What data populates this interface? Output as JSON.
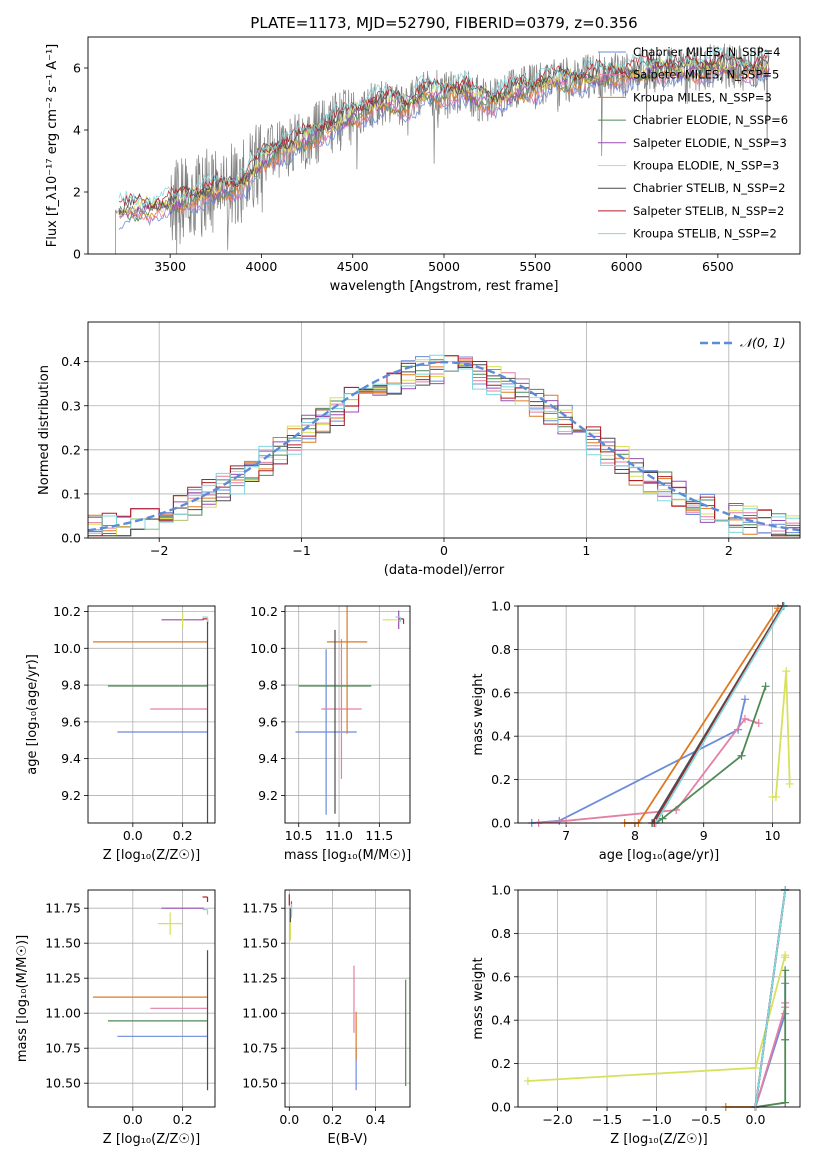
{
  "colors": {
    "chabrier_miles": "#6a8bdc",
    "salpeter_miles": "#e47fa6",
    "kroupa_miles": "#dd7a23",
    "chabrier_elodie": "#4f8a56",
    "salpeter_elodie": "#9a4db0",
    "kroupa_elodie": "#d8e05e",
    "chabrier_stelib": "#4d4d4d",
    "salpeter_stelib": "#b01f24",
    "kroupa_stelib": "#7fd8de",
    "data_grey": "#808080",
    "gauss": "#5b8bd9"
  },
  "chart_data": [
    {
      "id": "spectrum",
      "type": "line",
      "title": "PLATE=1173, MJD=52790, FIBERID=0379, z=0.356",
      "xlabel": "wavelength [Angstrom, rest frame]",
      "ylabel": "Flux [f_λ10⁻¹⁷ erg cm⁻² s⁻¹ A⁻¹]",
      "xlim": [
        3050,
        6950
      ],
      "ylim": [
        0,
        7
      ],
      "xticks": [
        "3500",
        "4000",
        "4500",
        "5000",
        "5500",
        "6000",
        "6500"
      ],
      "yticks": [
        "0",
        "2",
        "4",
        "6"
      ],
      "legend_position": "upper right",
      "legend": [
        "Chabrier MILES, N_SSP=4",
        "Salpeter MILES, N_SSP=5",
        "Kroupa MILES, N_SSP=3",
        "Chabrier ELODIE, N_SSP=6",
        "Salpeter ELODIE, N_SSP=3",
        "Kroupa ELODIE, N_SSP=3",
        "Chabrier STELIB, N_SSP=2",
        "Salpeter STELIB, N_SSP=2",
        "Kroupa STELIB, N_SSP=2"
      ],
      "model_knots": {
        "x": [
          3200,
          3300,
          3400,
          3500,
          3600,
          3700,
          3800,
          3900,
          4000,
          4100,
          4200,
          4300,
          4400,
          4500,
          4600,
          4700,
          4800,
          4900,
          5000,
          5100,
          5200,
          5300,
          5400,
          5500,
          5600,
          5700,
          5800,
          5900,
          6000,
          6100,
          6200,
          6300,
          6400,
          6500,
          6600,
          6700,
          6800
        ],
        "y": [
          1.3,
          1.45,
          1.5,
          1.6,
          1.8,
          2.0,
          2.1,
          2.3,
          3.0,
          3.4,
          3.6,
          3.9,
          4.2,
          4.5,
          4.8,
          4.9,
          4.8,
          5.2,
          5.2,
          5.3,
          5.0,
          5.0,
          5.3,
          5.4,
          5.6,
          5.6,
          5.7,
          5.8,
          5.8,
          5.9,
          6.0,
          5.9,
          6.0,
          6.1,
          6.0,
          6.0,
          6.0
        ]
      }
    },
    {
      "id": "residual-hist",
      "type": "line",
      "xlabel": "(data-model)/error",
      "ylabel": "Normed distribution",
      "xlim": [
        -2.5,
        2.5
      ],
      "ylim": [
        0,
        0.49
      ],
      "xticks": [
        "−2",
        "−1",
        "0",
        "1",
        "2"
      ],
      "yticks": [
        "0.0",
        "0.1",
        "0.2",
        "0.3",
        "0.4"
      ],
      "legend": [
        "𝒩(0, 1)"
      ],
      "legend_position": "upper right"
    },
    {
      "id": "age-vs-z",
      "type": "scatter",
      "xlabel": "Z [log₁₀(Z/Z☉)]",
      "ylabel": "age  [log₁₀(age/yr)]",
      "xlim": [
        -0.18,
        0.33
      ],
      "ylim": [
        9.05,
        10.23
      ],
      "xticks": [
        "0.0",
        "0.2"
      ],
      "yticks": [
        "9.2",
        "9.4",
        "9.6",
        "9.8",
        "10.0",
        "10.2"
      ],
      "points": [
        {
          "model": "chabrier_miles",
          "x": 0.118,
          "y": 9.545,
          "xerr": 0.18
        },
        {
          "model": "salpeter_miles",
          "x": 0.185,
          "y": 9.67,
          "xerr": 0.115
        },
        {
          "model": "kroupa_miles",
          "x": 0.07,
          "y": 10.035,
          "xerr": 0.23
        },
        {
          "model": "chabrier_elodie",
          "x": 0.1,
          "y": 9.795,
          "xerr": 0.2
        },
        {
          "model": "salpeter_elodie",
          "x": 0.2,
          "y": 10.155,
          "xerr": 0.085
        },
        {
          "model": "kroupa_elodie",
          "x": 0.2,
          "y": 10.155,
          "yerr": 0.04
        },
        {
          "model": "chabrier_stelib",
          "x": 0.3,
          "y": 9.6,
          "yerr": 0.55
        },
        {
          "model": "salpeter_stelib",
          "x": 0.3,
          "y": 10.16
        },
        {
          "model": "kroupa_stelib",
          "x": 0.3,
          "y": 10.17
        }
      ]
    },
    {
      "id": "age-vs-mass",
      "type": "scatter",
      "xlabel": "mass [log₁₀(M/M☉)]",
      "ylabel": "",
      "xlim": [
        10.33,
        11.88
      ],
      "ylim": [
        9.05,
        10.23
      ],
      "xticks": [
        "10.5",
        "11.0",
        "11.5"
      ],
      "yticks": [
        "9.2",
        "9.4",
        "9.6",
        "9.8",
        "10.0",
        "10.2"
      ],
      "points": [
        {
          "model": "chabrier_miles",
          "x": 10.84,
          "y": 9.545,
          "xerr": 0.38,
          "yerr": 0.45
        },
        {
          "model": "salpeter_miles",
          "x": 11.03,
          "y": 9.67,
          "xerr": 0.25,
          "yerr": 0.38
        },
        {
          "model": "kroupa_miles",
          "x": 11.1,
          "y": 10.035,
          "xerr": 0.25,
          "yerr": 0.5
        },
        {
          "model": "chabrier_elodie",
          "x": 10.95,
          "y": 9.795,
          "xerr": 0.45
        },
        {
          "model": "salpeter_elodie",
          "x": 11.74,
          "y": 10.155,
          "yerr": 0.05
        },
        {
          "model": "kroupa_elodie",
          "x": 11.64,
          "y": 10.155,
          "xerr": 0.1
        },
        {
          "model": "chabrier_stelib",
          "x": 10.95,
          "y": 9.6,
          "yerr": 0.5
        },
        {
          "model": "salpeter_stelib",
          "x": 11.8,
          "y": 10.16
        },
        {
          "model": "kroupa_stelib",
          "x": 11.76,
          "y": 10.17
        }
      ]
    },
    {
      "id": "mass-weight-vs-age",
      "type": "line",
      "xlabel": "age  [log₁₀(age/yr)]",
      "ylabel": "mass weight",
      "xlim": [
        6.3,
        10.4
      ],
      "ylim": [
        0,
        1
      ],
      "xticks": [
        "7",
        "8",
        "9",
        "10"
      ],
      "yticks": [
        "0.0",
        "0.2",
        "0.4",
        "0.6",
        "0.8",
        "1.0"
      ],
      "series": [
        {
          "model": "chabrier_miles",
          "x": [
            6.5,
            6.9,
            9.5,
            9.6
          ],
          "y": [
            0.0,
            0.01,
            0.43,
            0.57
          ]
        },
        {
          "model": "salpeter_miles",
          "x": [
            6.6,
            7.0,
            8.6,
            9.6,
            9.8
          ],
          "y": [
            0.0,
            0.01,
            0.06,
            0.48,
            0.46
          ]
        },
        {
          "model": "kroupa_miles",
          "x": [
            7.85,
            8.05,
            10.08
          ],
          "y": [
            0.0,
            0.0,
            0.99
          ]
        },
        {
          "model": "chabrier_elodie",
          "x": [
            8.3,
            8.4,
            9.55,
            9.9
          ],
          "y": [
            0.0,
            0.02,
            0.31,
            0.63
          ]
        },
        {
          "model": "salpeter_elodie",
          "x": [
            8.3,
            10.15
          ],
          "y": [
            0.0,
            1.0
          ]
        },
        {
          "model": "kroupa_elodie",
          "x": [
            10.0,
            10.05,
            10.2,
            10.25
          ],
          "y": [
            0.12,
            0.12,
            0.7,
            0.18
          ]
        },
        {
          "model": "chabrier_stelib",
          "x": [
            8.25,
            10.15
          ],
          "y": [
            0.0,
            1.0
          ]
        },
        {
          "model": "salpeter_stelib",
          "x": [
            8.28,
            10.16
          ],
          "y": [
            0.0,
            1.0
          ]
        },
        {
          "model": "kroupa_stelib",
          "x": [
            8.3,
            10.17
          ],
          "y": [
            0.0,
            1.0
          ]
        }
      ]
    },
    {
      "id": "mass-vs-z",
      "type": "scatter",
      "xlabel": "Z [log₁₀(Z/Z☉)]",
      "ylabel": "mass [log₁₀(M/M☉)]",
      "xlim": [
        -0.18,
        0.33
      ],
      "ylim": [
        10.33,
        11.88
      ],
      "xticks": [
        "0.0",
        "0.2"
      ],
      "yticks": [
        "10.50",
        "10.75",
        "11.00",
        "11.25",
        "11.50",
        "11.75"
      ],
      "points": [
        {
          "model": "chabrier_miles",
          "x": 0.118,
          "y": 10.835,
          "xerr": 0.18
        },
        {
          "model": "salpeter_miles",
          "x": 0.185,
          "y": 11.035,
          "xerr": 0.115
        },
        {
          "model": "kroupa_miles",
          "x": 0.07,
          "y": 11.115,
          "xerr": 0.23
        },
        {
          "model": "chabrier_elodie",
          "x": 0.1,
          "y": 10.945,
          "xerr": 0.2
        },
        {
          "model": "salpeter_elodie",
          "x": 0.2,
          "y": 11.75,
          "xerr": 0.085
        },
        {
          "model": "kroupa_elodie",
          "x": 0.15,
          "y": 11.64,
          "xerr": 0.05,
          "yerr": 0.08
        },
        {
          "model": "chabrier_stelib",
          "x": 0.3,
          "y": 10.95,
          "yerr": 0.5
        },
        {
          "model": "salpeter_stelib",
          "x": 0.3,
          "y": 11.83
        },
        {
          "model": "kroupa_stelib",
          "x": 0.3,
          "y": 11.74
        }
      ]
    },
    {
      "id": "mass-vs-ebv",
      "type": "scatter",
      "xlabel": "E(B-V)",
      "ylabel": "",
      "xlim": [
        -0.02,
        0.56
      ],
      "ylim": [
        10.33,
        11.88
      ],
      "xticks": [
        "0.0",
        "0.2",
        "0.4"
      ],
      "yticks": [
        "10.50",
        "10.75",
        "11.00",
        "11.25",
        "11.50",
        "11.75"
      ],
      "points": [
        {
          "model": "chabrier_miles",
          "x": 0.31,
          "y": 10.6,
          "yerr": 0.15
        },
        {
          "model": "salpeter_miles",
          "x": 0.3,
          "y": 11.1,
          "yerr": 0.24
        },
        {
          "model": "kroupa_miles",
          "x": 0.31,
          "y": 10.84,
          "yerr": 0.17
        },
        {
          "model": "chabrier_elodie",
          "x": 0.54,
          "y": 10.86,
          "yerr": 0.38
        },
        {
          "model": "salpeter_elodie",
          "x": 0.01,
          "y": 11.75,
          "yerr": 0.05
        },
        {
          "model": "kroupa_elodie",
          "x": 0.005,
          "y": 11.6,
          "yerr": 0.08
        },
        {
          "model": "chabrier_stelib",
          "x": 0.005,
          "y": 11.7,
          "yerr": 0.05
        },
        {
          "model": "salpeter_stelib",
          "x": 0.0,
          "y": 11.81,
          "yerr": 0.04
        },
        {
          "model": "kroupa_stelib",
          "x": 0.01,
          "y": 11.73,
          "yerr": 0.05
        }
      ]
    },
    {
      "id": "mass-weight-vs-z",
      "type": "line",
      "xlabel": "Z [log₁₀(Z/Z☉)]",
      "ylabel": "mass weight",
      "xlim": [
        -2.4,
        0.45
      ],
      "ylim": [
        0,
        1
      ],
      "xticks": [
        "−2.0",
        "−1.5",
        "−1.0",
        "−0.5",
        "0.0"
      ],
      "yticks": [
        "0.0",
        "0.2",
        "0.4",
        "0.6",
        "0.8",
        "1.0"
      ],
      "series": [
        {
          "model": "chabrier_miles",
          "x": [
            0.0,
            0.3,
            0.3
          ],
          "y": [
            0.0,
            0.43,
            0.57
          ]
        },
        {
          "model": "salpeter_miles",
          "x": [
            0.0,
            0.3,
            0.3
          ],
          "y": [
            0.0,
            0.46,
            0.48
          ]
        },
        {
          "model": "kroupa_miles",
          "x": [
            -0.3,
            0.0
          ],
          "y": [
            0.0,
            0.0
          ]
        },
        {
          "model": "chabrier_elodie",
          "x": [
            0.0,
            0.3,
            0.3,
            0.3
          ],
          "y": [
            0.0,
            0.02,
            0.31,
            0.63
          ]
        },
        {
          "model": "salpeter_elodie",
          "x": [
            0.0,
            0.3
          ],
          "y": [
            0.0,
            1.0
          ]
        },
        {
          "model": "kroupa_elodie",
          "x": [
            -2.3,
            0.0,
            0.3,
            0.3
          ],
          "y": [
            0.12,
            0.18,
            0.7,
            0.69
          ]
        },
        {
          "model": "chabrier_stelib",
          "x": [
            0.0,
            0.3
          ],
          "y": [
            0.0,
            1.0
          ]
        },
        {
          "model": "salpeter_stelib",
          "x": [
            0.0,
            0.3
          ],
          "y": [
            0.0,
            1.0
          ]
        },
        {
          "model": "kroupa_stelib",
          "x": [
            0.0,
            0.3
          ],
          "y": [
            0.0,
            1.0
          ]
        }
      ]
    }
  ]
}
